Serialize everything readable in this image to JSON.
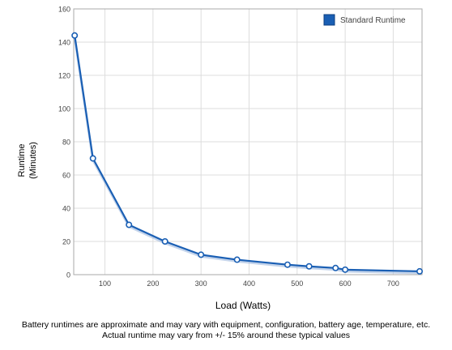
{
  "chart_data": {
    "type": "line",
    "title": "",
    "xlabel": "Load (Watts)",
    "ylabel_line1": "Runtime",
    "ylabel_line2": "(Minutes)",
    "xlim": [
      35,
      760
    ],
    "ylim": [
      0,
      160
    ],
    "x_ticks": [
      100,
      200,
      300,
      400,
      500,
      600,
      700
    ],
    "y_ticks": [
      0,
      20,
      40,
      60,
      80,
      100,
      120,
      140,
      160
    ],
    "grid": true,
    "legend_position": "top-right",
    "series": [
      {
        "name": "Standard Runtime",
        "color": "#1a5fb4",
        "points": [
          {
            "x": 37,
            "y": 144
          },
          {
            "x": 75,
            "y": 70
          },
          {
            "x": 150,
            "y": 30
          },
          {
            "x": 225,
            "y": 20
          },
          {
            "x": 300,
            "y": 12
          },
          {
            "x": 375,
            "y": 9
          },
          {
            "x": 480,
            "y": 6
          },
          {
            "x": 525,
            "y": 5
          },
          {
            "x": 580,
            "y": 4
          },
          {
            "x": 600,
            "y": 3
          },
          {
            "x": 755,
            "y": 2
          }
        ]
      }
    ]
  },
  "footnote": {
    "line1": "Battery runtimes are approximate and may vary with equipment, configuration, battery age, temperature, etc.",
    "line2": "Actual runtime may vary from +/- 15% around these typical values"
  }
}
